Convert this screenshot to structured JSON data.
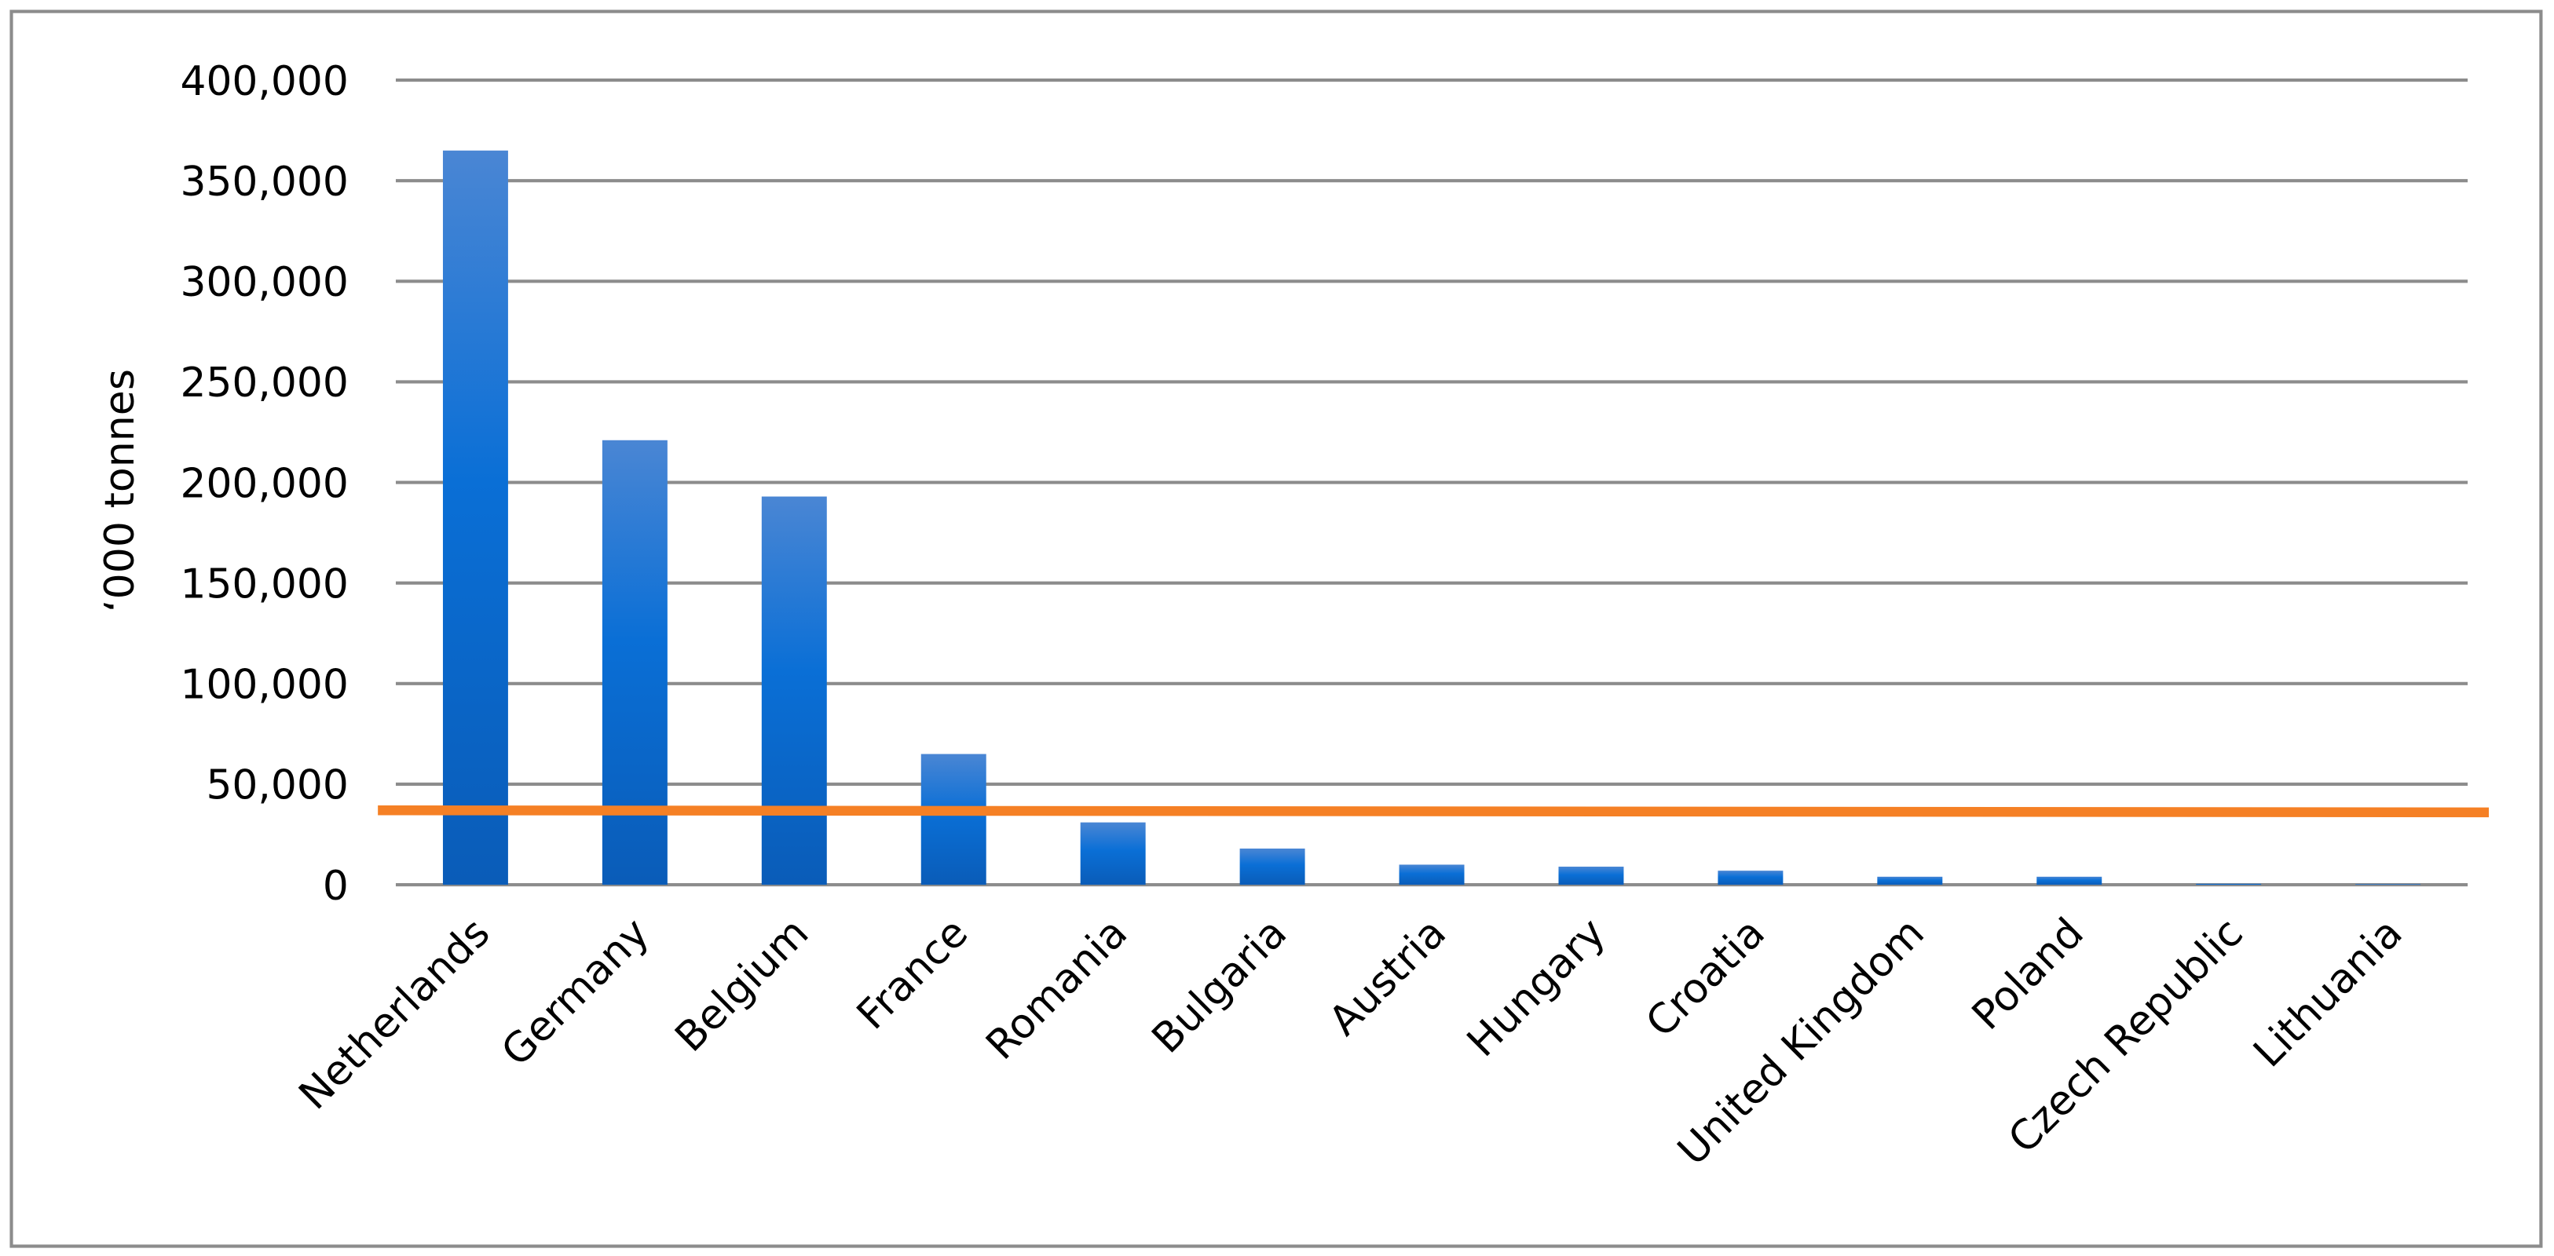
{
  "chart_data": {
    "type": "bar",
    "y_label": "‘000 tonnes",
    "categories": [
      "Netherlands",
      "Germany",
      "Belgium",
      "France",
      "Romania",
      "Bulgaria",
      "Austria",
      "Hungary",
      "Croatia",
      "United Kingdom",
      "Poland",
      "Czech Republic",
      "Lithuania"
    ],
    "values": [
      365000,
      221000,
      193000,
      65000,
      31000,
      18000,
      10000,
      9000,
      7000,
      4000,
      4000,
      500,
      300
    ],
    "color": "#1a6fd1",
    "ylim": [
      0,
      400000
    ],
    "yticks": [
      0,
      {
        "value": 50000,
        "label": "50,000"
      },
      {
        "value": 100000,
        "label": "100,000"
      },
      {
        "value": 150000,
        "label": "150,000"
      },
      {
        "value": 200000,
        "label": "200,000"
      },
      {
        "value": 250000,
        "label": "250,000"
      },
      {
        "value": 300000,
        "label": "300,000"
      },
      {
        "value": 350000,
        "label": "350,000"
      },
      {
        "value": 400000,
        "label": "400,000"
      }
    ],
    "grid": true,
    "reference_line": {
      "color": "#f58025",
      "values": [
        37000,
        36000
      ]
    }
  }
}
